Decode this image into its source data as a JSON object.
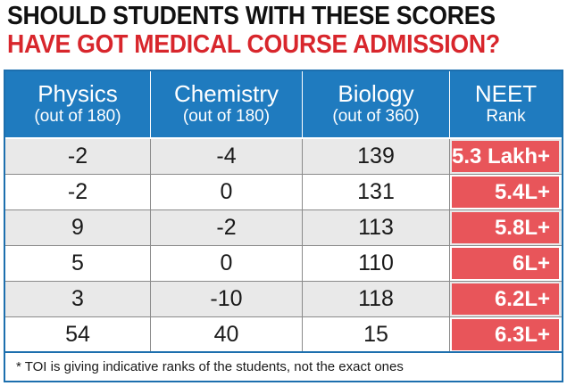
{
  "headline": {
    "line1": "SHOULD STUDENTS WITH THESE SCORES",
    "line2": "HAVE GOT MEDICAL COURSE ADMISSION?"
  },
  "colors": {
    "header_bg": "#1f7bbf",
    "headline_red": "#d8262c",
    "rank_bg": "#e8555a",
    "shaded_row": "#e9e9e9"
  },
  "table": {
    "columns": [
      {
        "title": "Physics",
        "sub": "(out of 180)"
      },
      {
        "title": "Chemistry",
        "sub": "(out of 180)"
      },
      {
        "title": "Biology",
        "sub": "(out of 360)"
      },
      {
        "title": "NEET",
        "sub": "Rank"
      }
    ],
    "rows": [
      {
        "physics": "-2",
        "chemistry": "-4",
        "biology": "139",
        "rank": "5.3 Lakh+"
      },
      {
        "physics": "-2",
        "chemistry": "0",
        "biology": "131",
        "rank": "5.4L+"
      },
      {
        "physics": "9",
        "chemistry": "-2",
        "biology": "113",
        "rank": "5.8L+"
      },
      {
        "physics": "5",
        "chemistry": "0",
        "biology": "110",
        "rank": "6L+"
      },
      {
        "physics": "3",
        "chemistry": "-10",
        "biology": "118",
        "rank": "6.2L+"
      },
      {
        "physics": "54",
        "chemistry": "40",
        "biology": "15",
        "rank": "6.3L+"
      }
    ]
  },
  "footnote": "* TOI is giving indicative ranks of the students, not the exact ones"
}
